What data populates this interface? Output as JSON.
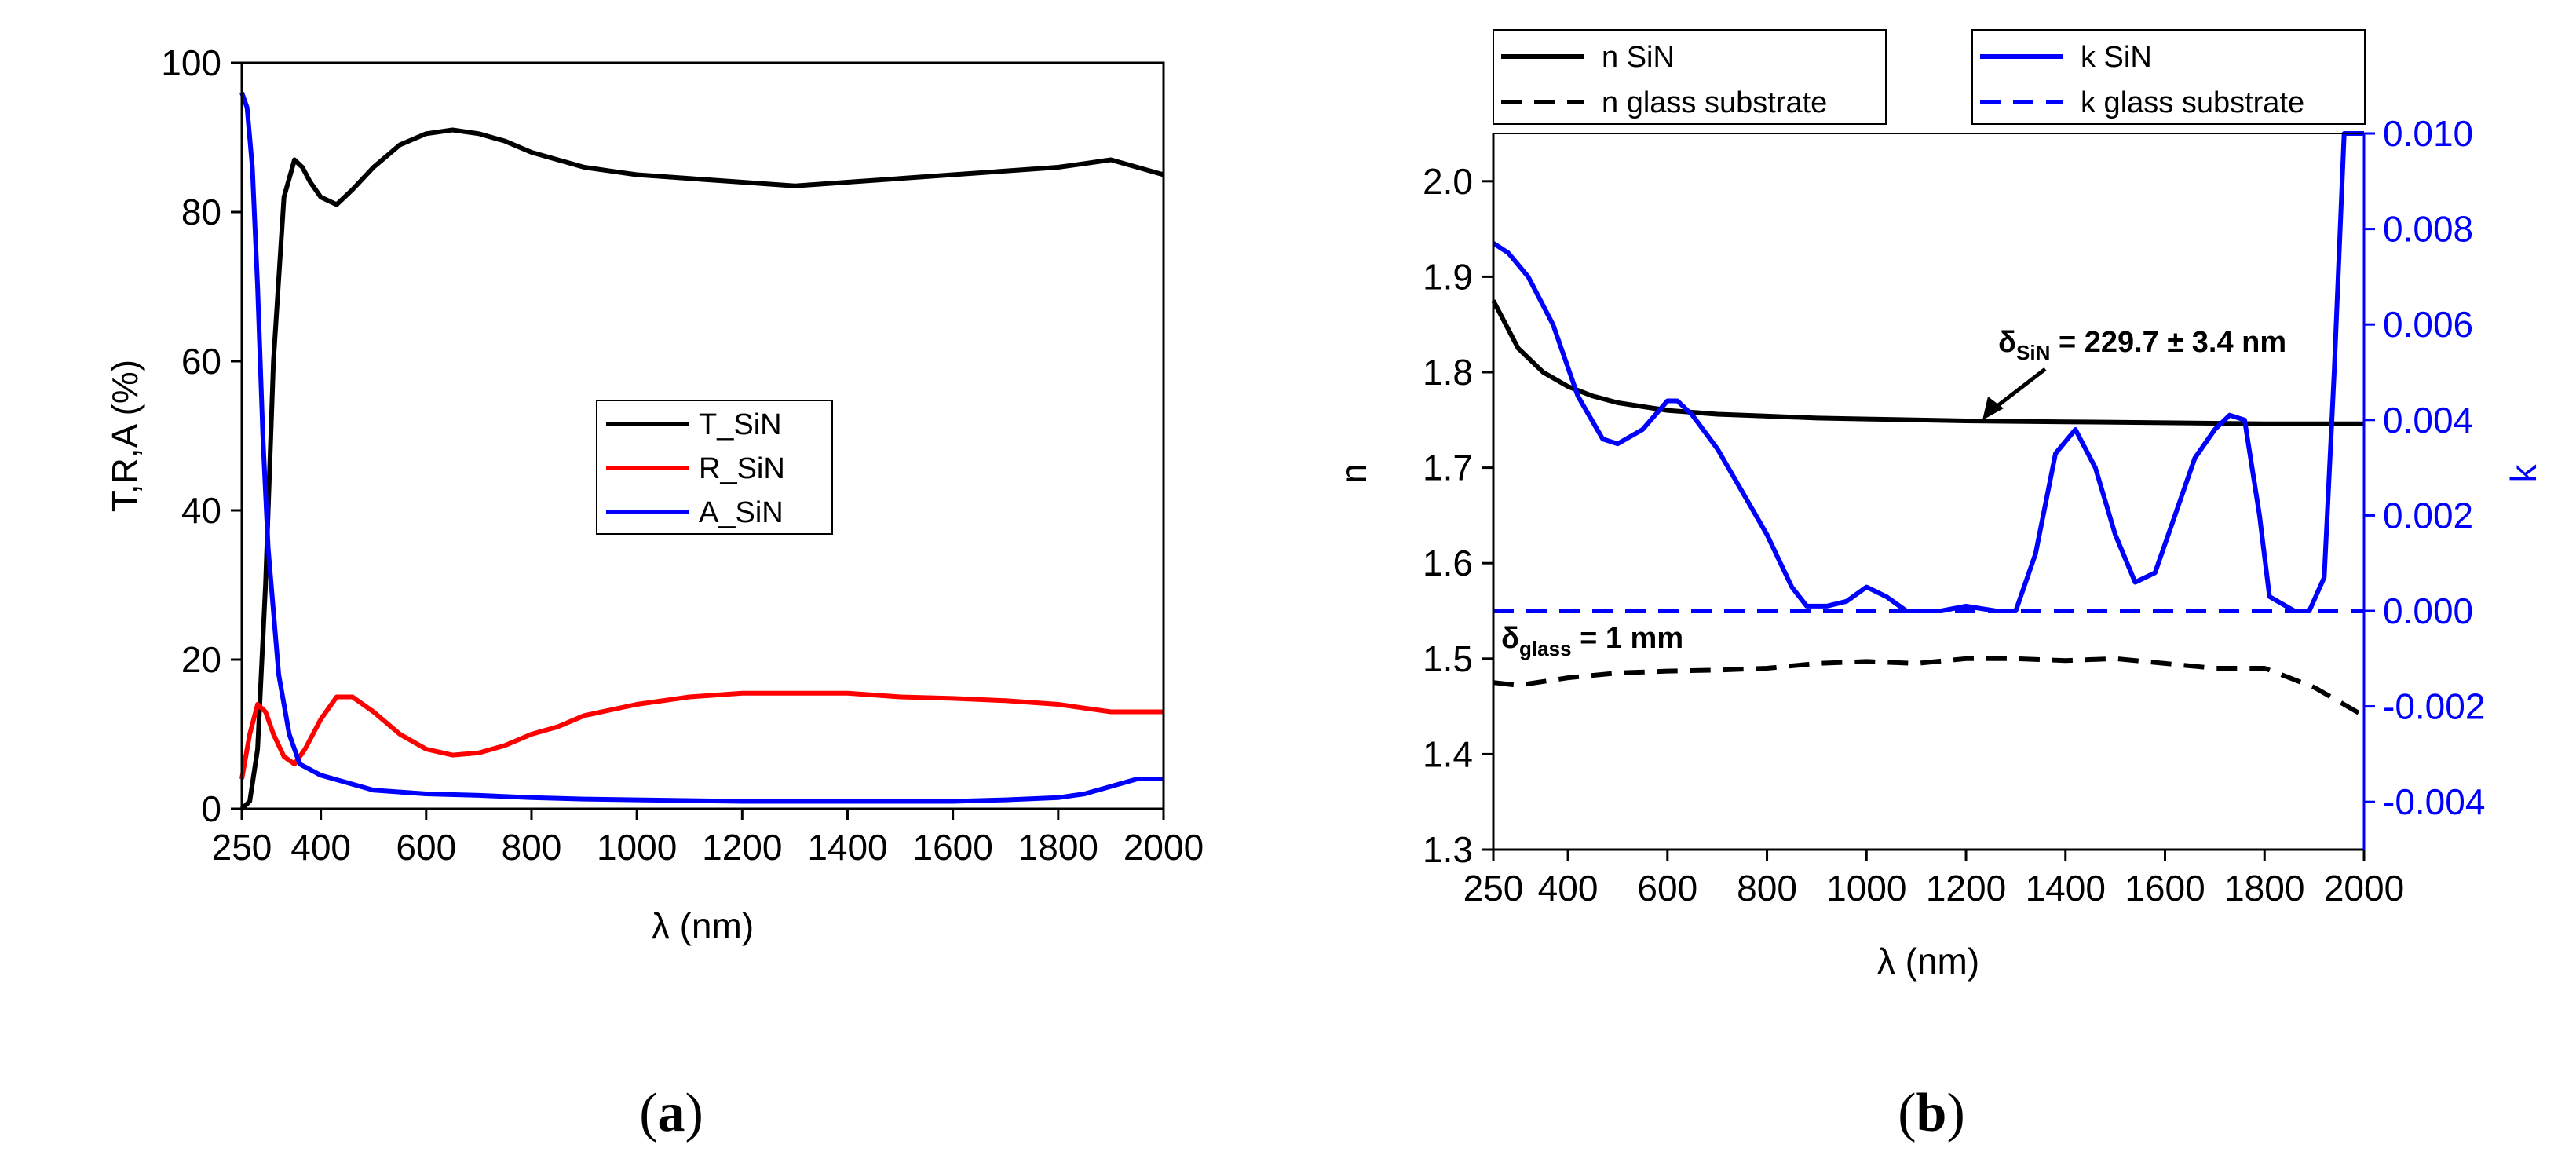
{
  "chart_data": [
    {
      "panel": "a",
      "type": "line",
      "xlabel": "λ (nm)",
      "ylabel": "T,R,A (%)",
      "xlim": [
        250,
        2000
      ],
      "ylim": [
        0,
        100
      ],
      "xticks": [
        "250",
        "400",
        "600",
        "800",
        "1000",
        "1200",
        "1400",
        "1600",
        "1800",
        "2000"
      ],
      "yticks": [
        "0",
        "20",
        "40",
        "60",
        "80",
        "100"
      ],
      "legend_position": "center-right",
      "series": [
        {
          "name": "T_SiN",
          "color": "#000000",
          "x": [
            250,
            265,
            280,
            295,
            310,
            330,
            350,
            365,
            380,
            400,
            430,
            460,
            500,
            550,
            600,
            650,
            700,
            750,
            800,
            850,
            900,
            950,
            1000,
            1100,
            1200,
            1300,
            1400,
            1500,
            1600,
            1700,
            1800,
            1850,
            1900,
            1950,
            2000
          ],
          "y": [
            0,
            1,
            8,
            30,
            60,
            82,
            87,
            86,
            84,
            82,
            81,
            83,
            86,
            89,
            90.5,
            91,
            90.5,
            89.5,
            88,
            87,
            86,
            85.5,
            85,
            84.5,
            84,
            83.5,
            84,
            84.5,
            85,
            85.5,
            86,
            86.5,
            87,
            86,
            85
          ]
        },
        {
          "name": "R_SiN",
          "color": "#ff0000",
          "x": [
            250,
            265,
            280,
            295,
            310,
            330,
            350,
            370,
            400,
            430,
            460,
            500,
            550,
            600,
            650,
            700,
            750,
            800,
            850,
            900,
            1000,
            1100,
            1200,
            1300,
            1400,
            1500,
            1600,
            1700,
            1800,
            1850,
            1900,
            1950,
            2000
          ],
          "y": [
            4,
            10,
            14,
            13,
            10,
            7,
            6,
            8,
            12,
            15,
            15,
            13,
            10,
            8,
            7.2,
            7.5,
            8.5,
            10,
            11,
            12.5,
            14,
            15,
            15.5,
            15.5,
            15.5,
            15,
            14.8,
            14.5,
            14,
            13.5,
            13,
            13,
            13
          ]
        },
        {
          "name": "A_SiN",
          "color": "#0000ff",
          "x": [
            250,
            260,
            270,
            280,
            290,
            300,
            320,
            340,
            360,
            400,
            450,
            500,
            600,
            700,
            800,
            900,
            1000,
            1200,
            1400,
            1600,
            1700,
            1800,
            1850,
            1900,
            1950,
            2000
          ],
          "y": [
            96,
            94,
            86,
            70,
            50,
            35,
            18,
            10,
            6,
            4.5,
            3.5,
            2.5,
            2,
            1.8,
            1.5,
            1.3,
            1.2,
            1,
            1,
            1,
            1.2,
            1.5,
            2,
            3,
            4,
            4
          ]
        }
      ]
    },
    {
      "panel": "b",
      "type": "line",
      "xlabel": "λ (nm)",
      "ylabel_left": "n",
      "ylabel_right": "k",
      "xlim": [
        250,
        2000
      ],
      "ylim_left": [
        1.3,
        2.05
      ],
      "ylim_right": [
        -0.005,
        0.01
      ],
      "xticks": [
        "250",
        "400",
        "600",
        "800",
        "1000",
        "1200",
        "1400",
        "1600",
        "1800",
        "2000"
      ],
      "yticks_left": [
        "1.3",
        "1.4",
        "1.5",
        "1.6",
        "1.7",
        "1.8",
        "1.9",
        "2.0"
      ],
      "yticks_right": [
        "-0.004",
        "-0.002",
        "0.000",
        "0.002",
        "0.004",
        "0.006",
        "0.008",
        "0.010"
      ],
      "series": [
        {
          "name": "n SiN",
          "color": "#000000",
          "style": "solid",
          "axis": "left",
          "x": [
            250,
            300,
            350,
            400,
            450,
            500,
            600,
            700,
            800,
            900,
            1000,
            1200,
            1400,
            1600,
            1800,
            2000
          ],
          "y": [
            1.875,
            1.825,
            1.8,
            1.785,
            1.775,
            1.768,
            1.76,
            1.756,
            1.754,
            1.752,
            1.751,
            1.749,
            1.748,
            1.747,
            1.746,
            1.746
          ]
        },
        {
          "name": "n glass substrate",
          "color": "#000000",
          "style": "dashed",
          "axis": "left",
          "x": [
            250,
            300,
            400,
            500,
            600,
            700,
            800,
            900,
            1000,
            1100,
            1200,
            1300,
            1400,
            1500,
            1600,
            1700,
            1800,
            1850,
            1900,
            1950,
            2000
          ],
          "y": [
            1.475,
            1.472,
            1.48,
            1.485,
            1.487,
            1.488,
            1.49,
            1.495,
            1.497,
            1.495,
            1.5,
            1.5,
            1.498,
            1.5,
            1.495,
            1.49,
            1.49,
            1.48,
            1.47,
            1.455,
            1.44
          ]
        },
        {
          "name": "k SiN",
          "color": "#0000ff",
          "style": "solid",
          "axis": "right",
          "x": [
            250,
            280,
            320,
            370,
            420,
            470,
            500,
            550,
            600,
            620,
            650,
            700,
            750,
            800,
            850,
            880,
            920,
            960,
            1000,
            1040,
            1080,
            1150,
            1200,
            1260,
            1300,
            1340,
            1380,
            1420,
            1460,
            1500,
            1540,
            1580,
            1620,
            1660,
            1700,
            1730,
            1760,
            1790,
            1810,
            1860,
            1890,
            1920,
            1940,
            1960,
            2000
          ],
          "y": [
            0.0077,
            0.0075,
            0.007,
            0.006,
            0.0045,
            0.0036,
            0.0035,
            0.0038,
            0.0044,
            0.0044,
            0.0041,
            0.0034,
            0.0025,
            0.0016,
            0.0005,
            0.0001,
            0.0001,
            0.0002,
            0.0005,
            0.0003,
            0.0,
            0.0,
            0.0001,
            0.0,
            0.0,
            0.0012,
            0.0033,
            0.0038,
            0.003,
            0.0016,
            0.0006,
            0.0008,
            0.002,
            0.0032,
            0.0038,
            0.0041,
            0.004,
            0.002,
            0.0003,
            0.0,
            0.0,
            0.0007,
            0.005,
            0.01,
            0.01
          ]
        },
        {
          "name": "k glass substrate",
          "color": "#0000ff",
          "style": "dashed",
          "axis": "right",
          "x": [
            250,
            2000
          ],
          "y": [
            0.0,
            0.0
          ]
        }
      ],
      "annotations": [
        {
          "text_main": "δ",
          "text_sub": "SiN",
          "text_rest": " = 229.7 ± 3.4 nm"
        },
        {
          "text_main": "δ",
          "text_sub": "glass",
          "text_rest": " = 1 mm"
        }
      ]
    }
  ],
  "captions": {
    "a_open": "(",
    "a_letter": "a",
    "a_close": ")",
    "b_open": "(",
    "b_letter": "b",
    "b_close": ")"
  },
  "colors": {
    "black": "#000000",
    "red": "#ff0000",
    "blue": "#0000ff"
  }
}
